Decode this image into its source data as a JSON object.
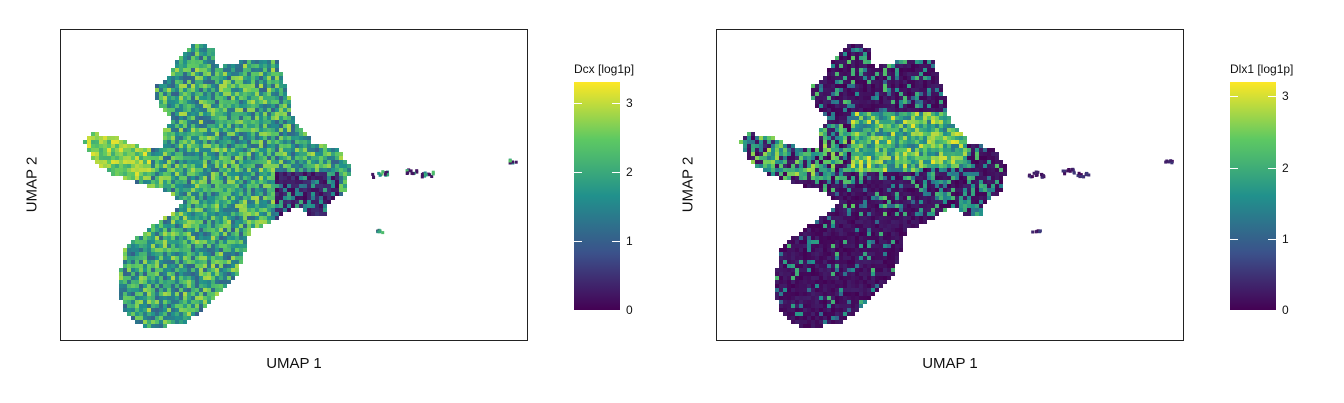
{
  "chart_data": [
    {
      "type": "scatter",
      "xlabel": "UMAP 1",
      "ylabel": "UMAP 2",
      "gene": "Dcx",
      "colorbar": {
        "title": "Dcx [log1p]",
        "ticks": [
          0,
          1,
          2,
          3
        ],
        "range": [
          0,
          3.3
        ]
      },
      "colormap": [
        "#440154",
        "#3b528b",
        "#21918c",
        "#5ec962",
        "#fde725"
      ],
      "grid": false,
      "legend": "right"
    },
    {
      "type": "scatter",
      "xlabel": "UMAP 1",
      "ylabel": "UMAP 2",
      "gene": "Dlx1",
      "colorbar": {
        "title": "Dlx1 [log1p]",
        "ticks": [
          0,
          1,
          2,
          3
        ],
        "range": [
          0,
          3.2
        ]
      },
      "colormap": [
        "#440154",
        "#3b528b",
        "#21918c",
        "#5ec962",
        "#fde725"
      ],
      "grid": false,
      "legend": "right"
    }
  ]
}
